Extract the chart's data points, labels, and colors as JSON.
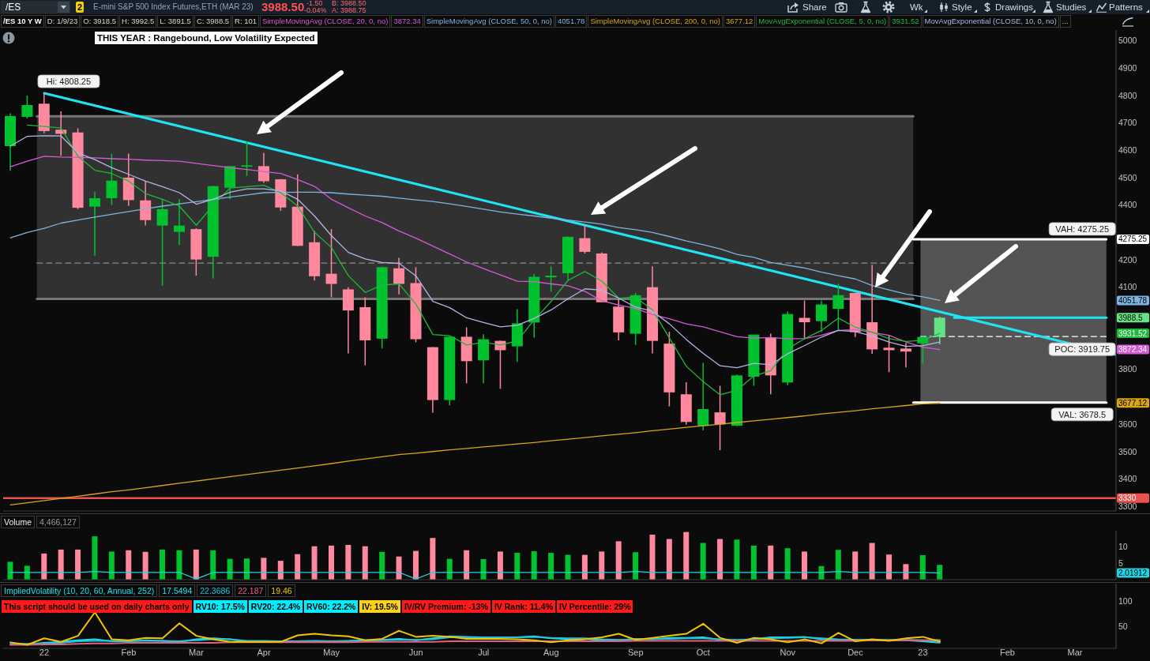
{
  "chart_data": [
    {
      "type": "candlestick",
      "title": "E-mini S&P 500 Index Futures,ETH (MAR 23)",
      "x": [
        "2021-12-20",
        "2021-12-27",
        "2022-01-03",
        "2022-01-10",
        "2022-01-17",
        "2022-01-24",
        "2022-01-31",
        "2022-02-07",
        "2022-02-14",
        "2022-02-21",
        "2022-02-28",
        "2022-03-07",
        "2022-03-14",
        "2022-03-21",
        "2022-03-28",
        "2022-04-04",
        "2022-04-11",
        "2022-04-18",
        "2022-04-25",
        "2022-05-02",
        "2022-05-09",
        "2022-05-16",
        "2022-05-23",
        "2022-05-30",
        "2022-06-06",
        "2022-06-13",
        "2022-06-20",
        "2022-06-27",
        "2022-07-04",
        "2022-07-11",
        "2022-07-18",
        "2022-07-25",
        "2022-08-01",
        "2022-08-08",
        "2022-08-15",
        "2022-08-22",
        "2022-08-29",
        "2022-09-05",
        "2022-09-12",
        "2022-09-19",
        "2022-09-26",
        "2022-10-03",
        "2022-10-10",
        "2022-10-17",
        "2022-10-24",
        "2022-10-31",
        "2022-11-07",
        "2022-11-14",
        "2022-11-21",
        "2022-11-28",
        "2022-12-05",
        "2022-12-12",
        "2022-12-19",
        "2022-12-26",
        "2023-01-02",
        "2023-01-09"
      ],
      "ohlc": [
        [
          4615,
          4735,
          4525,
          4725
        ],
        [
          4722,
          4800,
          4716,
          4765
        ],
        [
          4770,
          4808.25,
          4662,
          4670
        ],
        [
          4675,
          4742,
          4580,
          4660
        ],
        [
          4665,
          4680,
          4385,
          4390
        ],
        [
          4394,
          4448,
          4215,
          4425
        ],
        [
          4425,
          4587,
          4400,
          4489
        ],
        [
          4500,
          4588,
          4397,
          4418
        ],
        [
          4417,
          4487,
          4325,
          4345
        ],
        [
          4325,
          4421,
          4106,
          4385
        ],
        [
          4302,
          4421,
          4254,
          4325
        ],
        [
          4312,
          4315,
          4142,
          4201
        ],
        [
          4211,
          4470,
          4132,
          4469
        ],
        [
          4463,
          4542,
          4421,
          4542
        ],
        [
          4540,
          4633,
          4506,
          4545
        ],
        [
          4542,
          4590,
          4481,
          4487
        ],
        [
          4494,
          4495,
          4379,
          4391
        ],
        [
          4394,
          4512,
          4250,
          4251
        ],
        [
          4264,
          4306,
          4124,
          4140
        ],
        [
          4149,
          4312,
          4063,
          4112
        ],
        [
          4092,
          4100,
          3858,
          4015
        ],
        [
          4027,
          4063,
          3815,
          3906
        ],
        [
          3912,
          4175,
          3876,
          4173
        ],
        [
          4169,
          4207,
          4074,
          4112
        ],
        [
          4115,
          4173,
          3899,
          3910
        ],
        [
          3881,
          3881,
          3642,
          3688
        ],
        [
          3688,
          3920,
          3668,
          3919
        ],
        [
          3919,
          3953,
          3749,
          3830
        ],
        [
          3833,
          3928,
          3749,
          3910
        ],
        [
          3904,
          3905,
          3729,
          3870
        ],
        [
          3884,
          4020,
          3827,
          3968
        ],
        [
          3971,
          4148,
          3916,
          4138
        ],
        [
          4136,
          4176,
          4084,
          4142
        ],
        [
          4151,
          4285,
          4122,
          4284
        ],
        [
          4279,
          4327,
          4223,
          4229
        ],
        [
          4223,
          4227,
          4045,
          4045
        ],
        [
          4029,
          4058,
          3906,
          3935
        ],
        [
          3930,
          4079,
          3889,
          4071
        ],
        [
          4100,
          4176,
          3858,
          3904
        ],
        [
          3894,
          3937,
          3665,
          3716
        ],
        [
          3709,
          3753,
          3598,
          3608
        ],
        [
          3594,
          3824,
          3577,
          3655
        ],
        [
          3643,
          3740,
          3505,
          3599
        ],
        [
          3594,
          3781,
          3592,
          3778
        ],
        [
          3773,
          3927,
          3740,
          3927
        ],
        [
          3917,
          3930,
          3709,
          3778
        ],
        [
          3752,
          4011,
          3742,
          4002
        ],
        [
          3988,
          4051,
          3914,
          3972
        ],
        [
          3976,
          4051,
          3936,
          4037
        ],
        [
          4021,
          4112,
          3942,
          4071
        ],
        [
          4079,
          4080,
          3918,
          3936
        ],
        [
          3972,
          4182,
          3857,
          3873
        ],
        [
          3879,
          3925,
          3790,
          3870
        ],
        [
          3876,
          3896,
          3807,
          3865
        ],
        [
          3895,
          3920,
          3821,
          3918.5
        ],
        [
          3918.5,
          3992.5,
          3891.5,
          3988.5
        ]
      ],
      "colors": [
        "#00c22f",
        "#00c22f",
        "#ff889f",
        "#ff889f",
        "#ff889f",
        "#00c22f",
        "#00c22f",
        "#ff889f",
        "#ff889f",
        "#00c22f",
        "#00c22f",
        "#ff889f",
        "#00c22f",
        "#00c22f",
        "#00c22f",
        "#ff889f",
        "#ff889f",
        "#ff889f",
        "#ff889f",
        "#ff889f",
        "#ff889f",
        "#ff889f",
        "#00c22f",
        "#ff889f",
        "#ff889f",
        "#ff889f",
        "#00c22f",
        "#ff889f",
        "#00c22f",
        "#ff889f",
        "#00c22f",
        "#00c22f",
        "#00c22f",
        "#00c22f",
        "#ff889f",
        "#ff889f",
        "#ff889f",
        "#00c22f",
        "#ff889f",
        "#ff889f",
        "#ff889f",
        "#00c22f",
        "#ff889f",
        "#00c22f",
        "#00c22f",
        "#ff889f",
        "#00c22f",
        "#ff889f",
        "#00c22f",
        "#00c22f",
        "#ff889f",
        "#ff889f",
        "#ff889f",
        "#ff889f",
        "#00c22f",
        "#63e383"
      ],
      "xlim": [
        "2021-12-17",
        "2023-03-23"
      ],
      "ylim": [
        3283,
        5039
      ],
      "yticks": [
        3300,
        3330,
        3400,
        3500,
        3600,
        3677.12,
        3800,
        3872.34,
        3931.52,
        3988.5,
        4051.78,
        4100,
        4200,
        4275.25,
        4400,
        4500,
        4600,
        4700,
        4800,
        4900,
        5000
      ],
      "tick_labels": "y",
      "legend": "top right",
      "series": [
        {
          "type": "line",
          "color": "#8a8a8a",
          "line_style": "dashed",
          "x": [
            "2021-12-31",
            "2022-12-29"
          ],
          "values": [
            4188,
            4188
          ],
          "lower": [
            4057,
            4057
          ],
          "upper": [
            4724,
            4724
          ]
        },
        {
          "type": "line",
          "color": "#767676",
          "x": [
            "2021-12-31",
            "2022-12-29"
          ],
          "values": [
            4724,
            4724
          ]
        },
        {
          "type": "line",
          "color": "#767676",
          "x": [
            "2021-12-31",
            "2022-12-29"
          ],
          "values": [
            4057,
            4057
          ]
        },
        {
          "type": "line",
          "color": "#ffffff",
          "line_style": "dashed",
          "x": [
            "2023-01-01",
            "2023-03-19"
          ],
          "values": [
            3919.75,
            3919.75
          ],
          "lower": [
            3678.5,
            3678.5
          ],
          "upper": [
            4275.25,
            4275.25
          ]
        },
        {
          "type": "line",
          "color": "#ffffff",
          "x": [
            "2022-12-29",
            "2023-03-19"
          ],
          "values": [
            4275.25,
            4275.25
          ]
        },
        {
          "type": "line",
          "color": "#ffffff",
          "x": [
            "2022-12-29",
            "2023-03-19"
          ],
          "values": [
            3678.5,
            3678.5
          ]
        },
        {
          "type": "line",
          "name": "SimpleMovingAvg (CLOSE, 20, 0, no)",
          "color": "#d65ad6",
          "values": [
            4540,
            4560,
            4578,
            4575,
            4574,
            4572,
            4569,
            4567,
            4564,
            4562,
            4560,
            4552,
            4544,
            4536,
            4530,
            4522,
            4515,
            4493,
            4468,
            4421,
            4390,
            4360,
            4336,
            4305,
            4279,
            4250,
            4221,
            4192,
            4168,
            4145,
            4122,
            4120,
            4112,
            4105,
            4085,
            4050,
            4035,
            4022,
            4000,
            3985,
            3966,
            3955,
            3937,
            3919,
            3914,
            3916,
            3912,
            3912,
            3925,
            3942,
            3945,
            3935,
            3924,
            3900,
            3881,
            3872.34
          ]
        },
        {
          "type": "line",
          "name": "SimpleMovingAvg (CLOSE, 50, 0, no)",
          "color": "#7eb3e0",
          "values": [
            4280,
            4300,
            4315,
            4334,
            4345,
            4356,
            4366,
            4376,
            4386,
            4396,
            4404,
            4412,
            4421,
            4429,
            4437,
            4445,
            4446,
            4447,
            4447,
            4445,
            4440,
            4436,
            4432,
            4425,
            4419,
            4413,
            4404,
            4395,
            4385,
            4375,
            4367,
            4360,
            4352,
            4345,
            4338,
            4330,
            4318,
            4310,
            4300,
            4285,
            4269,
            4255,
            4240,
            4220,
            4209,
            4190,
            4180,
            4170,
            4155,
            4142,
            4130,
            4106,
            4090,
            4075,
            4065,
            4051.78
          ]
        },
        {
          "type": "line",
          "name": "SimpleMovingAvg (CLOSE, 200, 0, no)",
          "color": "#d8a515",
          "values": [
            3305,
            3313,
            3321,
            3329,
            3337,
            3345,
            3353,
            3360,
            3368,
            3376,
            3384,
            3392,
            3400,
            3408,
            3416,
            3424,
            3432,
            3440,
            3448,
            3456,
            3465,
            3473,
            3481,
            3489,
            3494,
            3500,
            3506,
            3511,
            3517,
            3522,
            3528,
            3533,
            3539,
            3545,
            3551,
            3557,
            3563,
            3569,
            3576,
            3582,
            3588,
            3594,
            3600,
            3606,
            3612,
            3618,
            3624,
            3630,
            3637,
            3643,
            3649,
            3656,
            3662,
            3668,
            3674,
            3677.12
          ]
        },
        {
          "type": "line",
          "name": "MovAvgExponential (CLOSE, 5, 0, no)",
          "color": "#1fb83a",
          "values": [
            null,
            4692,
            4687,
            4681,
            4578,
            4527,
            4515,
            4487,
            4442,
            4421,
            4396,
            4326,
            4399,
            4462,
            4467,
            4472,
            4445,
            4396,
            4300,
            4245,
            4142,
            4081,
            4108,
            4112,
            4038,
            3927,
            3923,
            3889,
            3899,
            3889,
            3904,
            3981,
            4048,
            4125,
            4157,
            4122,
            4060,
            4063,
            4017,
            3914,
            3811,
            3755,
            3707,
            3724,
            3776,
            3795,
            3875,
            3912,
            3942,
            3987,
            3954,
            3936,
            3912,
            3902,
            3906,
            3931.52
          ]
        },
        {
          "type": "line",
          "name": "MovAvgExponential (CLOSE, 10, 0, no)",
          "color": "#b4b4e8",
          "values": [
            4615,
            4651,
            4653,
            4652,
            4590,
            4566,
            4536,
            4512,
            4487,
            4467,
            4445,
            4403,
            4421,
            4447,
            4459,
            4459,
            4451,
            4421,
            4360,
            4288,
            4227,
            4203,
            4190,
            4187,
            4141,
            4048,
            4025,
            3988,
            3971,
            3955,
            3961,
            3986,
            4017,
            4058,
            4094,
            4089,
            4060,
            4027,
            4012,
            3966,
            3909,
            3858,
            3813,
            3806,
            3822,
            3817,
            3857,
            3887,
            3918,
            3942,
            3938,
            3921,
            3900,
            3884,
            3887,
            3900
          ]
        },
        {
          "type": "line",
          "color": "#1fe5f2",
          "x": [
            "2022-01-03",
            "2023-03-23"
          ],
          "values": [
            4808.25,
            3853
          ]
        },
        {
          "type": "line",
          "color": "#1fe5f2",
          "x": [
            "2023-01-15",
            "2023-03-19"
          ],
          "values": [
            3988.5,
            3988.5
          ]
        }
      ],
      "ref_lines": [
        {
          "axis": "y",
          "value": 3330,
          "color": "#e8534f"
        }
      ],
      "annotations": [
        "/ES",
        "2",
        "3988.50",
        "-1.50",
        "-0.04%",
        "B: 3988.50",
        "A: 3988.75",
        "Share",
        "Wk",
        "Style",
        "Drawings",
        "Studies",
        "Patterns",
        "/ES 10 Y W",
        "D: 1/9/23",
        "O: 3918.5",
        "H: 3992.5",
        "L: 3891.5",
        "C: 3988.5",
        "R: 101",
        "...",
        "THIS YEAR : Rangebound, Low Volatility Expected",
        "3872.34",
        "4051.78",
        "3677.12",
        "3931.52",
        {
          "text": "Hi: 4808.25",
          "x": "2022-01-03",
          "y": 4808.25
        },
        {
          "text": "VAH: 4275.25",
          "x": "2023-03-09",
          "y": 4275.25
        },
        {
          "text": "POC: 3919.75",
          "x": "2023-03-09",
          "y": 3919.75
        },
        {
          "text": "VAL: 3678.5",
          "x": "2023-03-09",
          "y": 3678.5
        }
      ]
    },
    {
      "type": "bar",
      "title": "Volume",
      "x": [
        "2021-12-20",
        "2021-12-27",
        "2022-01-03",
        "2022-01-10",
        "2022-01-17",
        "2022-01-24",
        "2022-01-31",
        "2022-02-07",
        "2022-02-14",
        "2022-02-21",
        "2022-02-28",
        "2022-03-07",
        "2022-03-14",
        "2022-03-21",
        "2022-03-28",
        "2022-04-04",
        "2022-04-11",
        "2022-04-18",
        "2022-04-25",
        "2022-05-02",
        "2022-05-09",
        "2022-05-16",
        "2022-05-23",
        "2022-05-30",
        "2022-06-06",
        "2022-06-13",
        "2022-06-20",
        "2022-06-27",
        "2022-07-04",
        "2022-07-11",
        "2022-07-18",
        "2022-07-25",
        "2022-08-01",
        "2022-08-08",
        "2022-08-15",
        "2022-08-22",
        "2022-08-29",
        "2022-09-05",
        "2022-09-12",
        "2022-09-19",
        "2022-09-26",
        "2022-10-03",
        "2022-10-10",
        "2022-10-17",
        "2022-10-24",
        "2022-10-31",
        "2022-11-07",
        "2022-11-14",
        "2022-11-21",
        "2022-11-28",
        "2022-12-05",
        "2022-12-12",
        "2022-12-19",
        "2022-12-26",
        "2023-01-02",
        "2023-01-09"
      ],
      "xlim": [
        "2021-12-17",
        "2023-03-23"
      ],
      "ylim": [
        0,
        14.8
      ],
      "yticks": [
        2.01912,
        5,
        10
      ],
      "tick_labels": "y",
      "series": [
        {
          "type": "bar",
          "values": [
            5.4,
            4.2,
            7.9,
            9.1,
            9.1,
            13.1,
            8.5,
            8.9,
            8.4,
            9.1,
            8.9,
            9.1,
            8.9,
            6.3,
            6.4,
            6.6,
            5.7,
            7.7,
            10.1,
            10.3,
            10.5,
            10.1,
            8.4,
            7,
            8.7,
            12.6,
            6.3,
            8.9,
            6.2,
            8.5,
            8.1,
            8.6,
            8.1,
            7.5,
            7.5,
            8.5,
            11.6,
            8.3,
            13.6,
            12.3,
            14.4,
            11.1,
            12.3,
            12.1,
            10.3,
            10.3,
            9.5,
            8.5,
            4.1,
            9,
            8.5,
            11.1,
            7.6,
            4.7,
            7.4,
            4.47
          ],
          "colors": [
            "#00c22f",
            "#00c22f",
            "#ff889f",
            "#ff889f",
            "#ff889f",
            "#00c22f",
            "#00c22f",
            "#ff889f",
            "#ff889f",
            "#00c22f",
            "#00c22f",
            "#ff889f",
            "#00c22f",
            "#00c22f",
            "#00c22f",
            "#ff889f",
            "#ff889f",
            "#ff889f",
            "#ff889f",
            "#ff889f",
            "#ff889f",
            "#ff889f",
            "#00c22f",
            "#ff889f",
            "#ff889f",
            "#ff889f",
            "#00c22f",
            "#ff889f",
            "#00c22f",
            "#ff889f",
            "#00c22f",
            "#00c22f",
            "#00c22f",
            "#00c22f",
            "#ff889f",
            "#ff889f",
            "#ff889f",
            "#00c22f",
            "#ff889f",
            "#ff889f",
            "#ff889f",
            "#00c22f",
            "#ff889f",
            "#00c22f",
            "#00c22f",
            "#ff889f",
            "#00c22f",
            "#ff889f",
            "#00c22f",
            "#00c22f",
            "#ff889f",
            "#ff889f",
            "#ff889f",
            "#ff889f",
            "#00c22f",
            "#00c22f"
          ]
        },
        {
          "type": "line",
          "color": "#22d3e6",
          "values": [
            2.2,
            2.2,
            2.2,
            2.2,
            2.2,
            2.5,
            2.2,
            2.2,
            2.2,
            2.2,
            2.2,
            0.2,
            2.2,
            2.2,
            2.2,
            2.2,
            2.2,
            2.2,
            2.2,
            2.2,
            2.2,
            2.2,
            2.2,
            2.2,
            0.2,
            2.2,
            2.2,
            2.2,
            2.2,
            2.2,
            2.2,
            2.2,
            2.2,
            2.2,
            2.2,
            2.2,
            2.2,
            2.5,
            2.2,
            2.2,
            2.2,
            2.2,
            2.2,
            2.2,
            2.2,
            2.2,
            2.2,
            2.2,
            2.2,
            2.5,
            2.2,
            2.2,
            2.2,
            2.2,
            2.2,
            2.01912
          ]
        }
      ],
      "annotations": [
        "4,466,127"
      ]
    },
    {
      "type": "line",
      "title": "ImpliedVolatility (10, 20, 60, Annual, 252)",
      "x": [
        "2021-12-20",
        "2021-12-27",
        "2022-01-03",
        "2022-01-10",
        "2022-01-17",
        "2022-01-24",
        "2022-01-31",
        "2022-02-07",
        "2022-02-14",
        "2022-02-21",
        "2022-02-28",
        "2022-03-07",
        "2022-03-14",
        "2022-03-21",
        "2022-03-28",
        "2022-04-04",
        "2022-04-11",
        "2022-04-18",
        "2022-04-25",
        "2022-05-02",
        "2022-05-09",
        "2022-05-16",
        "2022-05-23",
        "2022-05-30",
        "2022-06-06",
        "2022-06-13",
        "2022-06-20",
        "2022-06-27",
        "2022-07-04",
        "2022-07-11",
        "2022-07-18",
        "2022-07-25",
        "2022-08-01",
        "2022-08-08",
        "2022-08-15",
        "2022-08-22",
        "2022-08-29",
        "2022-09-05",
        "2022-09-12",
        "2022-09-19",
        "2022-09-26",
        "2022-10-03",
        "2022-10-10",
        "2022-10-17",
        "2022-10-24",
        "2022-10-31",
        "2022-11-07",
        "2022-11-14",
        "2022-11-21",
        "2022-11-28",
        "2022-12-05",
        "2022-12-12",
        "2022-12-19",
        "2022-12-26",
        "2023-01-02",
        "2023-01-09"
      ],
      "xlim": [
        "2021-12-17",
        "2023-03-23"
      ],
      "xticks": [
        {
          "value": "2022-01-03",
          "label": "22"
        },
        {
          "value": "2022-02-07",
          "label": "Feb"
        },
        {
          "value": "2022-03-07",
          "label": "Mar"
        },
        {
          "value": "2022-04-04",
          "label": "Apr"
        },
        {
          "value": "2022-05-02",
          "label": "May"
        },
        {
          "value": "2022-06-06",
          "label": "Jun"
        },
        {
          "value": "2022-07-04",
          "label": "Jul"
        },
        {
          "value": "2022-08-01",
          "label": "Aug"
        },
        {
          "value": "2022-09-05",
          "label": "Sep"
        },
        {
          "value": "2022-10-03",
          "label": "Oct"
        },
        {
          "value": "2022-11-07",
          "label": "Nov"
        },
        {
          "value": "2022-12-05",
          "label": "Dec"
        },
        {
          "value": "2023-01-02",
          "label": "23"
        },
        {
          "value": "2023-02-06",
          "label": "Feb"
        },
        {
          "value": "2023-03-06",
          "label": "Mar"
        }
      ],
      "ylim": [
        6,
        135
      ],
      "yticks": [
        50,
        100
      ],
      "series": [
        {
          "type": "line",
          "color": "#19e6f5",
          "values": [
            14,
            14,
            17,
            19,
            22,
            24,
            20,
            20,
            22,
            21,
            19,
            24,
            26,
            24,
            19,
            19,
            19,
            20,
            21,
            20,
            21,
            22,
            23,
            25,
            22,
            26,
            30,
            29,
            28,
            28,
            28,
            30,
            26,
            24,
            25,
            22,
            22,
            25,
            24,
            27,
            27,
            28,
            23,
            22,
            24,
            28,
            28,
            29,
            24,
            22,
            23,
            22,
            22,
            22,
            20,
            17.5
          ]
        },
        {
          "type": "line",
          "color": "#20c2dc",
          "values": [
            15,
            15,
            16,
            17,
            20,
            21,
            21,
            21,
            21,
            21,
            20,
            22,
            24,
            24,
            21,
            21,
            20,
            20,
            20,
            20,
            20,
            21,
            22,
            23,
            23,
            24,
            28,
            28,
            28,
            28,
            28,
            29,
            27,
            26,
            26,
            24,
            23,
            24,
            24,
            25,
            26,
            26,
            24,
            23,
            24,
            26,
            27,
            28,
            26,
            24,
            23,
            23,
            23,
            23,
            22,
            22.4
          ]
        },
        {
          "type": "line",
          "color": "#e0607e",
          "values": [
            13,
            13,
            14,
            14,
            15,
            16,
            16,
            17,
            17,
            17,
            17,
            17,
            17,
            18,
            18,
            18,
            18,
            18,
            18,
            18,
            18,
            19,
            19,
            19,
            19,
            19,
            20,
            20,
            20,
            20,
            20,
            20,
            20,
            20,
            20,
            20,
            20,
            21,
            21,
            21,
            21,
            21,
            21,
            21,
            21,
            21,
            21,
            21,
            21,
            21,
            21,
            22,
            22,
            22,
            22,
            22.2
          ]
        },
        {
          "type": "line",
          "color": "#f2c500",
          "values": [
            18,
            13,
            26,
            19,
            31,
            78,
            24,
            22,
            27,
            26,
            56,
            31,
            24,
            19,
            19,
            19,
            19,
            32,
            35,
            32,
            30,
            22,
            25,
            41,
            29,
            31,
            29,
            25,
            25,
            25,
            24,
            22,
            18,
            22,
            24,
            28,
            35,
            23,
            27,
            31,
            35,
            55,
            27,
            17,
            27,
            24,
            18,
            24,
            16,
            37,
            20,
            24,
            21,
            26,
            29,
            19.5
          ]
        }
      ],
      "annotations": [
        "17.5494",
        "22.3686",
        "22.187",
        "19.46",
        "This script should be used on daily charts only",
        "RV10: 17.5%",
        "RV20: 22.4%",
        "RV60: 22.2%",
        "IV: 19.5%",
        "IV/RV Premium: -13%",
        "IV Rank: 11.4%",
        "IV Percentile: 29%"
      ]
    }
  ]
}
